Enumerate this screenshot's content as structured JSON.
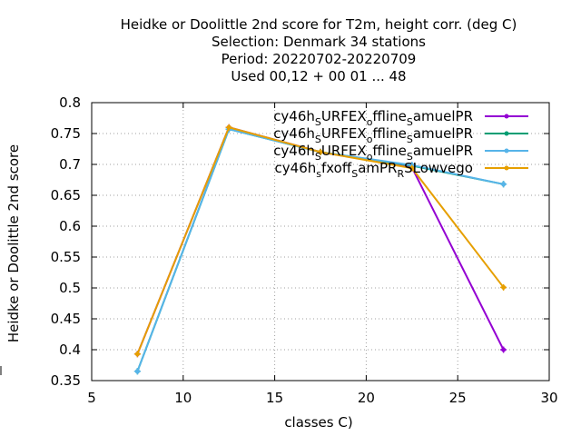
{
  "chart_data": {
    "type": "line",
    "title_lines": [
      "Heidke or Doolittle 2nd score  for T2m, height corr. (deg C)",
      "Selection: Denmark      34 stations",
      "Period: 20220702-20220709",
      "Used  00,12  + 00 01 ... 48"
    ],
    "xlabel": "classes C)",
    "ylabel": "Heidke or Doolittle 2nd score",
    "xlim": [
      5,
      30
    ],
    "ylim": [
      0.35,
      0.8
    ],
    "x_ticks": [
      "5",
      "10",
      "15",
      "20",
      "25",
      "30"
    ],
    "y_ticks": [
      "0.35",
      "0.4",
      "0.45",
      "0.5",
      "0.55",
      "0.6",
      "0.65",
      "0.7",
      "0.75",
      "0.8"
    ],
    "grid": true,
    "legend_position": "top-right",
    "x": [
      7.5,
      12.5,
      17.5,
      22.5,
      27.5
    ],
    "series": [
      {
        "legend_parts": [
          [
            "cy46h",
            false
          ],
          [
            "S",
            true
          ],
          [
            "URFEX",
            false
          ],
          [
            "o",
            true
          ],
          [
            "ffline",
            false
          ],
          [
            "S",
            true
          ],
          [
            "amuelPR",
            false
          ]
        ],
        "color": "#9400d3",
        "values": [
          0.393,
          0.76,
          0.72,
          0.695,
          0.4
        ]
      },
      {
        "legend_parts": [
          [
            "cy46h",
            false
          ],
          [
            "S",
            true
          ],
          [
            "URFEX",
            false
          ],
          [
            "o",
            true
          ],
          [
            "ffline",
            false
          ],
          [
            "S",
            true
          ],
          [
            "amuelPR",
            false
          ]
        ],
        "color": "#009e73",
        "values": [
          0.365,
          0.757,
          0.72,
          0.698,
          0.668
        ]
      },
      {
        "legend_parts": [
          [
            "cy46h",
            false
          ],
          [
            "S",
            true
          ],
          [
            "URFEX",
            false
          ],
          [
            "o",
            true
          ],
          [
            "ffline",
            false
          ],
          [
            "S",
            true
          ],
          [
            "amuelPR",
            false
          ]
        ],
        "color": "#56b4e9",
        "values": [
          0.365,
          0.757,
          0.72,
          0.699,
          0.668
        ]
      },
      {
        "legend_parts": [
          [
            "cy46h",
            false
          ],
          [
            "s",
            true
          ],
          [
            "fxoff",
            false
          ],
          [
            "S",
            true
          ],
          [
            "amPR",
            false
          ],
          [
            "R",
            true
          ],
          [
            "SLowvego",
            false
          ]
        ],
        "color": "#e69f00",
        "values": [
          0.393,
          0.76,
          0.72,
          0.694,
          0.501
        ]
      }
    ]
  }
}
